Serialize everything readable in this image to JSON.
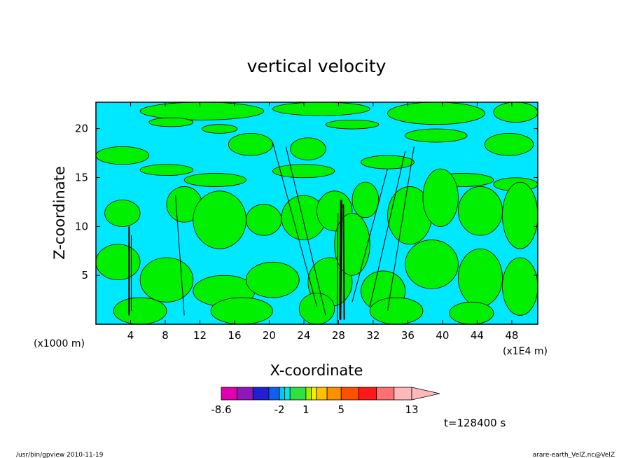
{
  "chart_data": {
    "type": "heatmap",
    "title": "vertical velocity",
    "xlabel": "X-coordinate",
    "ylabel": "Z-coordinate",
    "x_unit_left": "(x1000 m)",
    "x_unit_right": "(x1E4 m)",
    "xlim": [
      0,
      51
    ],
    "ylim": [
      0,
      22.7
    ],
    "x_ticks": [
      "4",
      "8",
      "12",
      "16",
      "20",
      "24",
      "28",
      "32",
      "36",
      "40",
      "44",
      "48"
    ],
    "x_tick_values": [
      4,
      8,
      12,
      16,
      20,
      24,
      28,
      32,
      36,
      40,
      44,
      48
    ],
    "y_ticks": [
      "5",
      "10",
      "15",
      "20"
    ],
    "y_tick_values": [
      5,
      10,
      15,
      20
    ],
    "colorbar": {
      "levels": [
        -8.6,
        -6.8,
        -5,
        -3.2,
        -2,
        -1.4,
        -0.8,
        1,
        1.6,
        2.2,
        3.4,
        5,
        7,
        9,
        11,
        13,
        17
      ],
      "colors": [
        "#e000b0",
        "#9018b8",
        "#2020d0",
        "#1060f0",
        "#00c8f0",
        "#00e8e0",
        "#30e040",
        "#a0f000",
        "#f0f000",
        "#ffc000",
        "#ff9000",
        "#ff5000",
        "#ff1818",
        "#ff7070",
        "#ffb8b8"
      ],
      "labels": [
        "-8.6",
        "-2",
        "1",
        "5",
        "13"
      ],
      "label_levels": [
        -8.6,
        -2,
        1,
        5,
        13
      ],
      "extend": "max"
    },
    "background_color": "#00e8ff",
    "region_color": "#00f000"
  },
  "time_label": "t=128400 s",
  "footer_left": "/usr/bin/gpview   2010-11-19",
  "footer_right": "arare-earth_VelZ.nc@VelZ"
}
